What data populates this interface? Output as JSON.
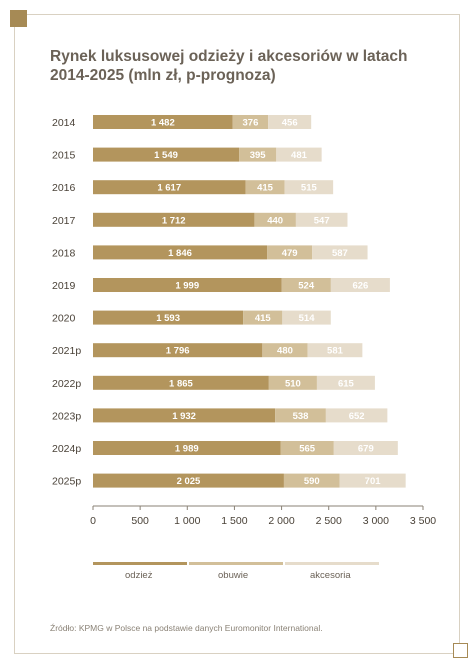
{
  "title": "Rynek luksusowej odzieży i akcesoriów w latach 2014-2025 (mln zł, p-prognoza)",
  "source": "Źródło: KPMG w Polsce na podstawie danych Euromonitor International.",
  "chart_data": {
    "type": "bar",
    "orientation": "horizontal",
    "stacked": true,
    "title": "Rynek luksusowej odzieży i akcesoriów w latach 2014-2025 (mln zł, p-prognoza)",
    "categories": [
      "2014",
      "2015",
      "2016",
      "2017",
      "2018",
      "2019",
      "2020",
      "2021p",
      "2022p",
      "2023p",
      "2024p",
      "2025p"
    ],
    "series": [
      {
        "name": "odzież",
        "color": "#b3955d",
        "values": [
          1482,
          1549,
          1617,
          1712,
          1846,
          1999,
          1593,
          1796,
          1865,
          1932,
          1989,
          2025
        ],
        "labels": [
          "1 482",
          "1 549",
          "1 617",
          "1 712",
          "1 846",
          "1 999",
          "1 593",
          "1 796",
          "1 865",
          "1 932",
          "1 989",
          "2 025"
        ]
      },
      {
        "name": "obuwie",
        "color": "#d2bf99",
        "values": [
          376,
          395,
          415,
          440,
          479,
          524,
          415,
          480,
          510,
          538,
          565,
          590
        ],
        "labels": [
          "376",
          "395",
          "415",
          "440",
          "479",
          "524",
          "415",
          "480",
          "510",
          "538",
          "565",
          "590"
        ]
      },
      {
        "name": "akcesoria",
        "color": "#e6dccb",
        "values": [
          456,
          481,
          515,
          547,
          587,
          626,
          514,
          581,
          615,
          652,
          679,
          701
        ],
        "labels": [
          "456",
          "481",
          "515",
          "547",
          "587",
          "626",
          "514",
          "581",
          "615",
          "652",
          "679",
          "701"
        ]
      }
    ],
    "xlim": [
      0,
      3500
    ],
    "xticks": [
      0,
      500,
      1000,
      1500,
      2000,
      2500,
      3000,
      3500
    ],
    "xtick_labels": [
      "0",
      "500",
      "1 000",
      "1 500",
      "2 000",
      "2 500",
      "3 000",
      "3 500"
    ],
    "grid": false,
    "legend_position": "bottom"
  }
}
